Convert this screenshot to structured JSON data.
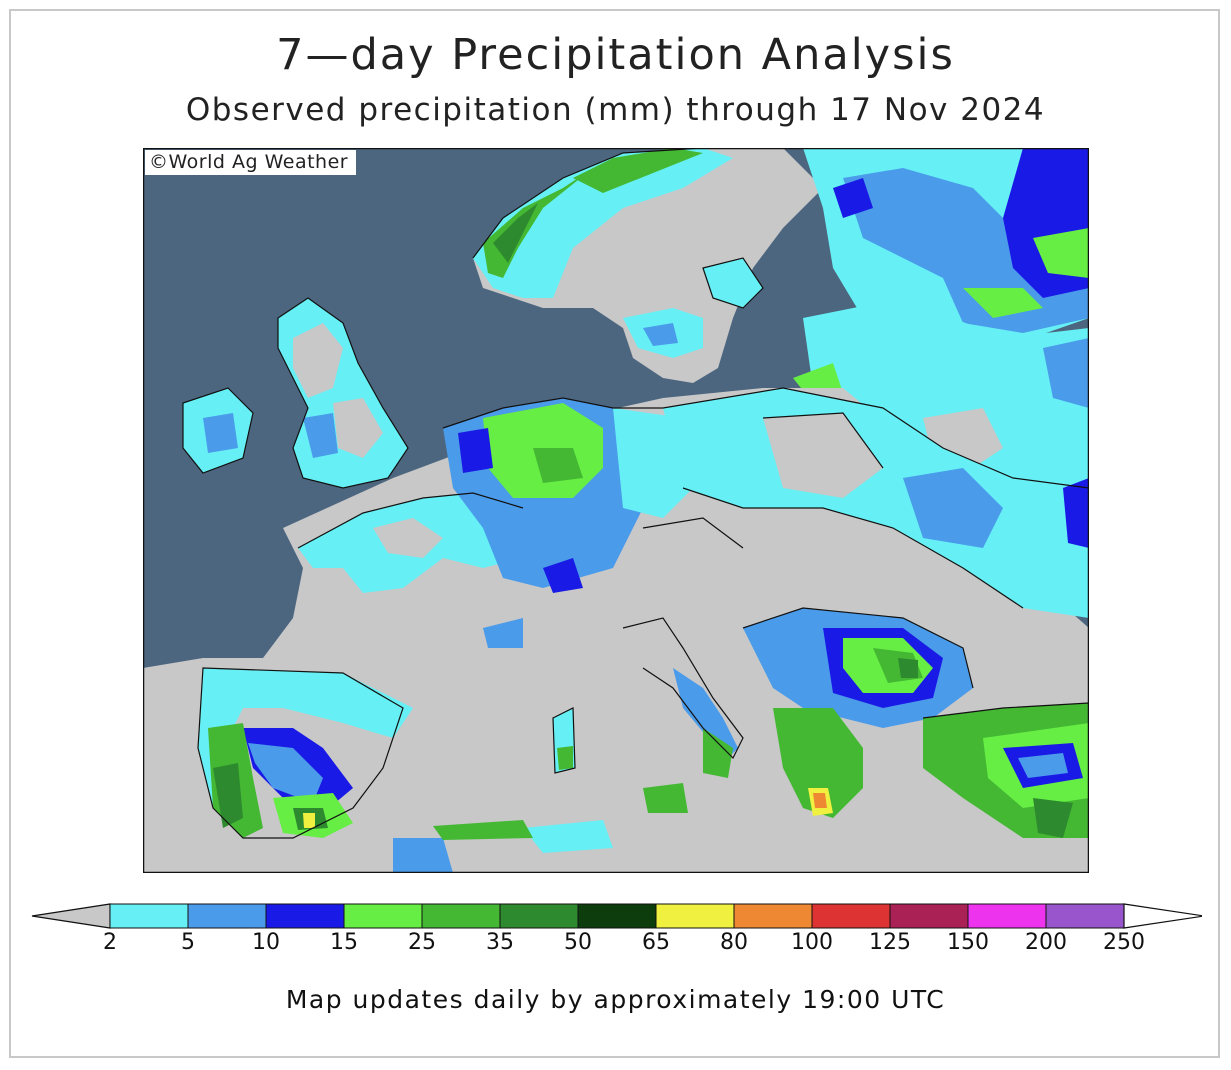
{
  "title": "7—day Precipitation Analysis",
  "subtitle": "Observed precipitation (mm) through 17 Nov 2024",
  "copyright": "©World Ag Weather",
  "footer": "Map updates daily by approximately 19:00 UTC",
  "colors": {
    "ocean": "#4d6680",
    "below2": "#c8c8c8",
    "c2": "#66f0f5",
    "c5": "#4a9bea",
    "c10": "#1a1ae6",
    "c15": "#66ee44",
    "c25": "#44b833",
    "c35": "#2e8a2e",
    "c50": "#0d3d0d",
    "c65": "#f0f040",
    "c80": "#ee8833",
    "c100": "#dd3333",
    "c125": "#aa2255",
    "c150": "#ee33ee",
    "c200": "#9955cc"
  },
  "legend": {
    "unit": "mm",
    "thresholds": [
      "2",
      "5",
      "10",
      "15",
      "25",
      "35",
      "50",
      "65",
      "80",
      "100",
      "125",
      "150",
      "200",
      "250"
    ],
    "bins": [
      "#66f0f5",
      "#4a9bea",
      "#1a1ae6",
      "#66ee44",
      "#44b833",
      "#2e8a2e",
      "#0d3d0d",
      "#f0f040",
      "#ee8833",
      "#dd3333",
      "#aa2255",
      "#ee33ee",
      "#9955cc"
    ],
    "below_color": "#c8c8c8",
    "above_color": "#ffffff"
  }
}
